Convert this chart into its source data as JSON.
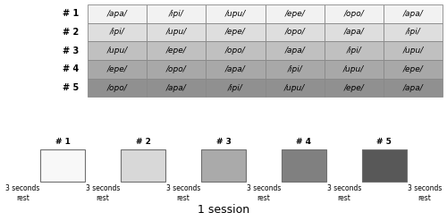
{
  "table_rows": [
    {
      "label": "# 1",
      "cells": [
        "/apa/",
        "/ipi/",
        "/upu/",
        "/epe/",
        "/opo/",
        "/apa/"
      ],
      "bg": "#f2f2f2"
    },
    {
      "label": "# 2",
      "cells": [
        "/ipi/",
        "/upu/",
        "/epe/",
        "/opo/",
        "/apa/",
        "/ipi/"
      ],
      "bg": "#dedede"
    },
    {
      "label": "# 3",
      "cells": [
        "/upu/",
        "/epe/",
        "/opo/",
        "/apa/",
        "/ipi/",
        "/upu/"
      ],
      "bg": "#c0c0c0"
    },
    {
      "label": "# 4",
      "cells": [
        "/epe/",
        "/opo/",
        "/apa/",
        "/ipi/",
        "/upu/",
        "/epe/"
      ],
      "bg": "#a8a8a8"
    },
    {
      "label": "# 5",
      "cells": [
        "/opo/",
        "/apa/",
        "/ipi/",
        "/upu/",
        "/epe/",
        "/apa/"
      ],
      "bg": "#909090"
    }
  ],
  "bar_labels": [
    "# 1",
    "# 2",
    "# 3",
    "# 4",
    "# 5"
  ],
  "bar_colors": [
    "#f8f8f8",
    "#d8d8d8",
    "#aaaaaa",
    "#808080",
    "#585858"
  ],
  "bar_edge_color": "#888888",
  "rest_label": "3 seconds\nrest",
  "session_label": "1 session",
  "table_border_color": "#888888",
  "table_label_color": "#e0e0e0",
  "background_color": "#ffffff"
}
